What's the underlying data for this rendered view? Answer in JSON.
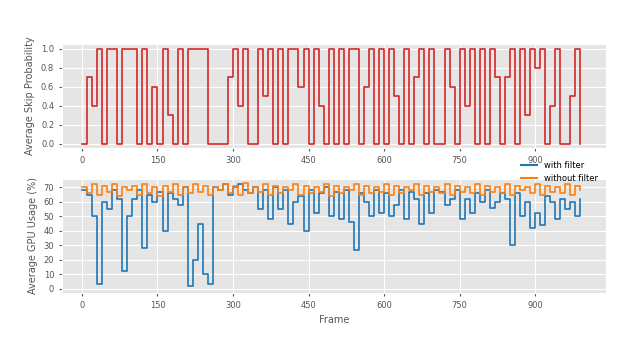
{
  "chart_data": [
    {
      "type": "line",
      "ylabel": "Average Skip Probability",
      "x": [
        0,
        10,
        20,
        30,
        40,
        50,
        60,
        70,
        80,
        90,
        100,
        110,
        120,
        130,
        140,
        150,
        160,
        170,
        180,
        190,
        200,
        210,
        220,
        230,
        240,
        250,
        260,
        270,
        280,
        290,
        300,
        310,
        320,
        330,
        340,
        350,
        360,
        370,
        380,
        390,
        400,
        410,
        420,
        430,
        440,
        450,
        460,
        470,
        480,
        490,
        500,
        510,
        520,
        530,
        540,
        550,
        560,
        570,
        580,
        590,
        600,
        610,
        620,
        630,
        640,
        650,
        660,
        670,
        680,
        690,
        700,
        710,
        720,
        730,
        740,
        750,
        760,
        770,
        780,
        790,
        800,
        810,
        820,
        830,
        840,
        850,
        860,
        870,
        880,
        890,
        900,
        910,
        920,
        930,
        940,
        950,
        960,
        970,
        980,
        990
      ],
      "series": [
        {
          "name": "skip probability",
          "color": "#d62728",
          "values": [
            0,
            0.7,
            0.4,
            1,
            0,
            1,
            1,
            0,
            1,
            1,
            1,
            0,
            1,
            0,
            0.6,
            0,
            1,
            0.3,
            0,
            1,
            0,
            1,
            1,
            1,
            1,
            0,
            0,
            0,
            0,
            0.7,
            1,
            0.4,
            1,
            0,
            0,
            1,
            0.5,
            1,
            0,
            1,
            0,
            1,
            1,
            0.6,
            1,
            0,
            1,
            0.4,
            0,
            1,
            0,
            1,
            0,
            1,
            1,
            0,
            0.6,
            1,
            0,
            1,
            0,
            1,
            0.5,
            0,
            1,
            0,
            0.7,
            1,
            0,
            1,
            0,
            0,
            1,
            0.6,
            0,
            1,
            0.4,
            1,
            0,
            1,
            0,
            1,
            0.7,
            0,
            0.7,
            1,
            0,
            1,
            0.3,
            1,
            0.8,
            1,
            0,
            0.4,
            1,
            0,
            0,
            0.5,
            1,
            0
          ]
        }
      ],
      "xlim": [
        -40,
        1040
      ],
      "xticks": [
        0,
        150,
        300,
        450,
        600,
        750,
        900
      ],
      "ylim": [
        -0.05,
        1.05
      ],
      "yticks": [
        0.0,
        0.2,
        0.4,
        0.6,
        0.8,
        1.0
      ],
      "grid": true
    },
    {
      "type": "line",
      "xlabel": "Frame",
      "ylabel": "Average GPU Usage (%)",
      "x": [
        0,
        10,
        20,
        30,
        40,
        50,
        60,
        70,
        80,
        90,
        100,
        110,
        120,
        130,
        140,
        150,
        160,
        170,
        180,
        190,
        200,
        210,
        220,
        230,
        240,
        250,
        260,
        270,
        280,
        290,
        300,
        310,
        320,
        330,
        340,
        350,
        360,
        370,
        380,
        390,
        400,
        410,
        420,
        430,
        440,
        450,
        460,
        470,
        480,
        490,
        500,
        510,
        520,
        530,
        540,
        550,
        560,
        570,
        580,
        590,
        600,
        610,
        620,
        630,
        640,
        650,
        660,
        670,
        680,
        690,
        700,
        710,
        720,
        730,
        740,
        750,
        760,
        770,
        780,
        790,
        800,
        810,
        820,
        830,
        840,
        850,
        860,
        870,
        880,
        890,
        900,
        910,
        920,
        930,
        940,
        950,
        960,
        970,
        980,
        990
      ],
      "series": [
        {
          "name": "with filter",
          "color": "#1f77b4",
          "values": [
            68,
            65,
            50,
            3,
            60,
            55,
            68,
            62,
            12,
            50,
            62,
            68,
            28,
            65,
            60,
            67,
            40,
            66,
            62,
            58,
            70,
            2,
            20,
            45,
            10,
            3,
            70,
            68,
            72,
            65,
            70,
            72,
            68,
            66,
            70,
            55,
            68,
            48,
            70,
            55,
            68,
            45,
            60,
            64,
            40,
            68,
            52,
            66,
            70,
            50,
            67,
            48,
            68,
            46,
            27,
            66,
            60,
            50,
            68,
            52,
            66,
            50,
            58,
            68,
            48,
            67,
            62,
            45,
            66,
            52,
            68,
            67,
            58,
            62,
            68,
            48,
            62,
            52,
            66,
            60,
            68,
            56,
            60,
            66,
            62,
            30,
            66,
            50,
            60,
            42,
            52,
            44,
            64,
            60,
            48,
            62,
            55,
            60,
            50,
            62
          ]
        },
        {
          "name": "without filter",
          "color": "#ff7f0e",
          "values": [
            70,
            66,
            72,
            65,
            71,
            67,
            72,
            64,
            70,
            68,
            71,
            65,
            72,
            66,
            70,
            64,
            71,
            67,
            72,
            65,
            70,
            66,
            72,
            67,
            71,
            65,
            70,
            68,
            72,
            66,
            71,
            65,
            73,
            66,
            70,
            67,
            72,
            65,
            71,
            66,
            70,
            68,
            72,
            65,
            71,
            66,
            70,
            67,
            72,
            64,
            71,
            66,
            70,
            68,
            72,
            65,
            71,
            66,
            70,
            67,
            72,
            65,
            71,
            66,
            70,
            68,
            72,
            65,
            71,
            67,
            70,
            66,
            72,
            65,
            71,
            67,
            70,
            66,
            72,
            65,
            71,
            67,
            70,
            66,
            72,
            65,
            71,
            68,
            70,
            66,
            72,
            65,
            71,
            67,
            70,
            66,
            72,
            65,
            71,
            68
          ]
        }
      ],
      "legend": "upper right",
      "xlim": [
        -40,
        1040
      ],
      "xticks": [
        0,
        150,
        300,
        450,
        600,
        750,
        900
      ],
      "ylim": [
        -3,
        76
      ],
      "yticks": [
        0,
        10,
        20,
        30,
        40,
        50,
        60,
        70
      ],
      "grid": true
    }
  ]
}
